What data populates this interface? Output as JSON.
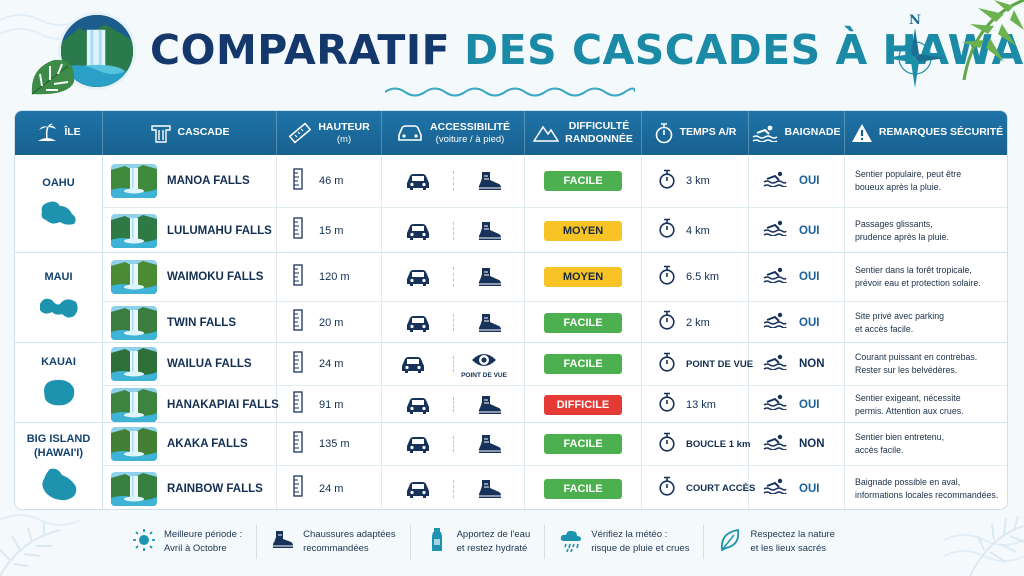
{
  "title": {
    "part1": "COMPARATIF",
    "part2": "DES CASCADES À HAWAÏ"
  },
  "compass_letter": "N",
  "headers": {
    "ile": "ÎLE",
    "cascade": "CASCADE",
    "hauteur": "HAUTEUR",
    "hauteur_unit": "(m)",
    "accessibilite": "ACCESSIBILITÉ",
    "accessibilite_sub": "(voiture / à pied)",
    "difficulte": "DIFFICULTÉ",
    "difficulte_sub": "RANDONNÉE",
    "temps": "TEMPS A/R",
    "baignade": "BAIGNADE",
    "remarques": "REMARQUES SÉCURITÉ"
  },
  "islands": [
    {
      "name": "OAHU",
      "name2": ""
    },
    {
      "name": "MAUI",
      "name2": ""
    },
    {
      "name": "KAUAI",
      "name2": ""
    },
    {
      "name": "BIG ISLAND",
      "name2": "(HAWAI'I)"
    }
  ],
  "rows": [
    {
      "name": "MANOA FALLS",
      "height": "46 m",
      "access_foot": "hiking-boot-icon",
      "difficulty": "FACILE",
      "time": "3 km",
      "swim": "OUI",
      "remark1": "Sentier populaire, peut être",
      "remark2": "boueux après la pluie."
    },
    {
      "name": "LULUMAHU FALLS",
      "height": "15 m",
      "access_foot": "hiking-boot-icon",
      "difficulty": "MOYEN",
      "time": "4 km",
      "swim": "OUI",
      "remark1": "Passages glissants,",
      "remark2": "prudence après la pluie."
    },
    {
      "name": "WAIMOKU FALLS",
      "height": "120 m",
      "access_foot": "hiking-boot-icon",
      "difficulty": "MOYEN",
      "time": "6.5 km",
      "swim": "OUI",
      "remark1": "Sentier dans la forêt tropicale,",
      "remark2": "prévoir eau et protection solaire."
    },
    {
      "name": "TWIN FALLS",
      "height": "20 m",
      "access_foot": "hiking-boot-icon",
      "difficulty": "FACILE",
      "time": "2 km",
      "swim": "OUI",
      "remark1": "Site privé avec parking",
      "remark2": "et accès facile."
    },
    {
      "name": "WAILUA FALLS",
      "height": "24 m",
      "access_foot": "eye-icon",
      "access_label": "POINT DE VUE",
      "difficulty": "FACILE",
      "time": "POINT DE VUE",
      "swim": "NON",
      "remark1": "Courant puissant en contrebas.",
      "remark2": "Rester sur les belvédères."
    },
    {
      "name": "HANAKAPIAI FALLS",
      "height": "91 m",
      "access_foot": "hiking-boot-icon",
      "difficulty": "DIFFICILE",
      "time": "13 km",
      "swim": "OUI",
      "remark1": "Sentier exigeant, nécessite",
      "remark2": "permis. Attention aux crues."
    },
    {
      "name": "AKAKA FALLS",
      "height": "135 m",
      "access_foot": "hiking-boot-icon",
      "difficulty": "FACILE",
      "time": "BOUCLE 1 km",
      "swim": "NON",
      "remark1": "Sentier bien entretenu,",
      "remark2": "accès facile."
    },
    {
      "name": "RAINBOW FALLS",
      "height": "24 m",
      "access_foot": "hiking-boot-icon",
      "difficulty": "FACILE",
      "time": "COURT ACCÈS",
      "swim": "OUI",
      "remark1": "Baignade possible en aval,",
      "remark2": "informations locales recommandées."
    }
  ],
  "difficulty_colors": {
    "FACILE": {
      "bg": "#4caf50",
      "fg": "#ffffff"
    },
    "MOYEN": {
      "bg": "#f7c325",
      "fg": "#1a2a3a"
    },
    "DIFFICILE": {
      "bg": "#e53935",
      "fg": "#ffffff"
    }
  },
  "tips": [
    {
      "icon": "sun-icon",
      "line1": "Meilleure période :",
      "line2": "Avril à Octobre"
    },
    {
      "icon": "hiking-boot-icon",
      "line1": "Chaussures adaptées",
      "line2": "recommandées"
    },
    {
      "icon": "water-bottle-icon",
      "line1": "Apportez de l'eau",
      "line2": "et restez hydraté"
    },
    {
      "icon": "rain-cloud-icon",
      "line1": "Vérifiez la météo :",
      "line2": "risque de pluie et crues"
    },
    {
      "icon": "leaf-icon",
      "line1": "Respectez la nature",
      "line2": "et les lieux sacrés"
    }
  ],
  "colors": {
    "header_bg": "#1f73a8",
    "title_dark": "#14386b",
    "title_teal": "#1a8aa6",
    "accent_teal": "#1b8fa8"
  }
}
